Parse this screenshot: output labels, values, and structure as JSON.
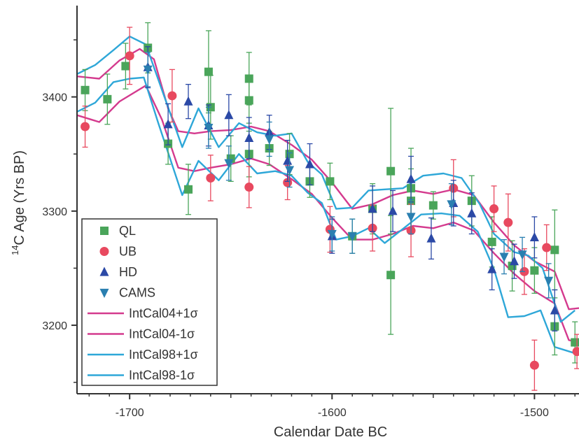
{
  "chart_data": {
    "type": "scatter",
    "xlabel": "Calendar Date BC",
    "ylabel_prefix": "14",
    "ylabel": "C Age (Yrs BP)",
    "xlim": [
      -1726,
      -1478
    ],
    "ylim": [
      3140,
      3480
    ],
    "x_ticks": [
      -1700,
      -1600,
      -1500
    ],
    "x_tick_labels": [
      "-1700",
      "-1600",
      "-1500"
    ],
    "y_ticks": [
      3200,
      3300,
      3400
    ],
    "y_tick_labels": [
      "3200",
      "3300",
      "3400"
    ],
    "grid": false,
    "legend_position": "bottom-left",
    "colors": {
      "QL": "#4aa55a",
      "UB": "#e8495f",
      "HD": "#2b49a6",
      "CAMS": "#2a7fb0",
      "IntCal04": "#d43a8e",
      "IntCal98": "#2ea7d8"
    },
    "scatter_series": [
      {
        "name": "QL",
        "marker": "square",
        "color": "#4aa55a",
        "points": [
          {
            "x": -1722,
            "y": 3406,
            "err": 18
          },
          {
            "x": -1711,
            "y": 3398,
            "err": 22
          },
          {
            "x": -1702,
            "y": 3427,
            "err": 20
          },
          {
            "x": -1691,
            "y": 3443,
            "err": 22
          },
          {
            "x": -1681,
            "y": 3359,
            "err": 18
          },
          {
            "x": -1671,
            "y": 3319,
            "err": 22
          },
          {
            "x": -1661,
            "y": 3422,
            "err": 36
          },
          {
            "x": -1660,
            "y": 3391,
            "err": 28
          },
          {
            "x": -1641,
            "y": 3416,
            "err": 23
          },
          {
            "x": -1641,
            "y": 3397,
            "err": 20
          },
          {
            "x": -1641,
            "y": 3350,
            "err": 20
          },
          {
            "x": -1650,
            "y": 3346,
            "err": 20
          },
          {
            "x": -1631,
            "y": 3355,
            "err": 15
          },
          {
            "x": -1621,
            "y": 3350,
            "err": 18
          },
          {
            "x": -1611,
            "y": 3326,
            "err": 14
          },
          {
            "x": -1601,
            "y": 3326,
            "err": 16
          },
          {
            "x": -1590,
            "y": 3278,
            "err": 15
          },
          {
            "x": -1580,
            "y": 3302,
            "err": 22
          },
          {
            "x": -1571,
            "y": 3335,
            "err": 55
          },
          {
            "x": -1571,
            "y": 3244,
            "err": 52
          },
          {
            "x": -1561,
            "y": 3309,
            "err": 28
          },
          {
            "x": -1561,
            "y": 3320,
            "err": 35
          },
          {
            "x": -1550,
            "y": 3305,
            "err": 12
          },
          {
            "x": -1531,
            "y": 3309,
            "err": 22
          },
          {
            "x": -1521,
            "y": 3273,
            "err": 22
          },
          {
            "x": -1511,
            "y": 3252,
            "err": 22
          },
          {
            "x": -1500,
            "y": 3248,
            "err": 20
          },
          {
            "x": -1490,
            "y": 3266,
            "err": 35
          },
          {
            "x": -1490,
            "y": 3199,
            "err": 25
          },
          {
            "x": -1480,
            "y": 3185,
            "err": 18
          }
        ]
      },
      {
        "name": "UB",
        "marker": "circle",
        "color": "#e8495f",
        "points": [
          {
            "x": -1722,
            "y": 3374,
            "err": 18
          },
          {
            "x": -1700,
            "y": 3436,
            "err": 25
          },
          {
            "x": -1679,
            "y": 3401,
            "err": 23
          },
          {
            "x": -1660,
            "y": 3329,
            "err": 20
          },
          {
            "x": -1641,
            "y": 3321,
            "err": 18
          },
          {
            "x": -1622,
            "y": 3325,
            "err": 15
          },
          {
            "x": -1601,
            "y": 3284,
            "err": 20
          },
          {
            "x": -1580,
            "y": 3285,
            "err": 20
          },
          {
            "x": -1561,
            "y": 3283,
            "err": 23
          },
          {
            "x": -1540,
            "y": 3320,
            "err": 25
          },
          {
            "x": -1520,
            "y": 3302,
            "err": 20
          },
          {
            "x": -1513,
            "y": 3290,
            "err": 25
          },
          {
            "x": -1505,
            "y": 3247,
            "err": 20
          },
          {
            "x": -1500,
            "y": 3165,
            "err": 22
          },
          {
            "x": -1494,
            "y": 3268,
            "err": 20
          },
          {
            "x": -1479,
            "y": 3177,
            "err": 15
          }
        ]
      },
      {
        "name": "HD",
        "marker": "triangle-up",
        "color": "#2b49a6",
        "points": [
          {
            "x": -1691,
            "y": 3426,
            "err": 18
          },
          {
            "x": -1681,
            "y": 3376,
            "err": 18
          },
          {
            "x": -1671,
            "y": 3396,
            "err": 15
          },
          {
            "x": -1661,
            "y": 3375,
            "err": 18
          },
          {
            "x": -1651,
            "y": 3384,
            "err": 18
          },
          {
            "x": -1641,
            "y": 3364,
            "err": 18
          },
          {
            "x": -1631,
            "y": 3369,
            "err": 15
          },
          {
            "x": -1622,
            "y": 3344,
            "err": 18
          },
          {
            "x": -1611,
            "y": 3341,
            "err": 18
          },
          {
            "x": -1600,
            "y": 3278,
            "err": 15
          },
          {
            "x": -1580,
            "y": 3302,
            "err": 20
          },
          {
            "x": -1570,
            "y": 3300,
            "err": 18
          },
          {
            "x": -1561,
            "y": 3328,
            "err": 20
          },
          {
            "x": -1551,
            "y": 3276,
            "err": 18
          },
          {
            "x": -1540,
            "y": 3307,
            "err": 20
          },
          {
            "x": -1531,
            "y": 3298,
            "err": 18
          },
          {
            "x": -1521,
            "y": 3249,
            "err": 18
          },
          {
            "x": -1510,
            "y": 3256,
            "err": 15
          },
          {
            "x": -1500,
            "y": 3277,
            "err": 18
          },
          {
            "x": -1490,
            "y": 3213,
            "err": 18
          }
        ]
      },
      {
        "name": "CAMS",
        "marker": "triangle-down",
        "color": "#2a7fb0",
        "points": [
          {
            "x": -1691,
            "y": 3424,
            "err": 15
          },
          {
            "x": -1661,
            "y": 3373,
            "err": 18
          },
          {
            "x": -1651,
            "y": 3342,
            "err": 15
          },
          {
            "x": -1631,
            "y": 3363,
            "err": 15
          },
          {
            "x": -1621,
            "y": 3336,
            "err": 15
          },
          {
            "x": -1600,
            "y": 3280,
            "err": 15
          },
          {
            "x": -1590,
            "y": 3278,
            "err": 15
          },
          {
            "x": -1561,
            "y": 3295,
            "err": 15
          },
          {
            "x": -1541,
            "y": 3306,
            "err": 18
          },
          {
            "x": -1515,
            "y": 3260,
            "err": 15
          },
          {
            "x": -1506,
            "y": 3262,
            "err": 15
          },
          {
            "x": -1493,
            "y": 3239,
            "err": 15
          }
        ]
      }
    ],
    "line_series": [
      {
        "name": "IntCal04+1σ",
        "color": "#d43a8e",
        "points": [
          [
            -1726,
            3418
          ],
          [
            -1715,
            3416
          ],
          [
            -1705,
            3432
          ],
          [
            -1695,
            3442
          ],
          [
            -1688,
            3433
          ],
          [
            -1681,
            3390
          ],
          [
            -1676,
            3370
          ],
          [
            -1668,
            3368
          ],
          [
            -1660,
            3370
          ],
          [
            -1650,
            3371
          ],
          [
            -1640,
            3374
          ],
          [
            -1631,
            3370
          ],
          [
            -1620,
            3358
          ],
          [
            -1610,
            3345
          ],
          [
            -1600,
            3325
          ],
          [
            -1590,
            3302
          ],
          [
            -1580,
            3306
          ],
          [
            -1570,
            3314
          ],
          [
            -1560,
            3318
          ],
          [
            -1550,
            3315
          ],
          [
            -1540,
            3319
          ],
          [
            -1530,
            3314
          ],
          [
            -1520,
            3290
          ],
          [
            -1510,
            3270
          ],
          [
            -1500,
            3256
          ],
          [
            -1490,
            3247
          ],
          [
            -1483,
            3214
          ],
          [
            -1478,
            3215
          ]
        ]
      },
      {
        "name": "IntCal04-1σ",
        "color": "#d43a8e",
        "points": [
          [
            -1726,
            3384
          ],
          [
            -1715,
            3378
          ],
          [
            -1705,
            3396
          ],
          [
            -1692,
            3410
          ],
          [
            -1684,
            3380
          ],
          [
            -1676,
            3338
          ],
          [
            -1668,
            3335
          ],
          [
            -1660,
            3338
          ],
          [
            -1650,
            3341
          ],
          [
            -1640,
            3346
          ],
          [
            -1631,
            3341
          ],
          [
            -1620,
            3328
          ],
          [
            -1610,
            3315
          ],
          [
            -1600,
            3294
          ],
          [
            -1590,
            3275
          ],
          [
            -1580,
            3275
          ],
          [
            -1570,
            3280
          ],
          [
            -1560,
            3287
          ],
          [
            -1550,
            3285
          ],
          [
            -1540,
            3290
          ],
          [
            -1530,
            3283
          ],
          [
            -1520,
            3263
          ],
          [
            -1510,
            3245
          ],
          [
            -1500,
            3230
          ],
          [
            -1490,
            3219
          ],
          [
            -1483,
            3187
          ],
          [
            -1478,
            3185
          ]
        ]
      },
      {
        "name": "IntCal98+1σ",
        "color": "#2ea7d8",
        "points": [
          [
            -1726,
            3420
          ],
          [
            -1717,
            3428
          ],
          [
            -1708,
            3441
          ],
          [
            -1700,
            3453
          ],
          [
            -1692,
            3446
          ],
          [
            -1684,
            3406
          ],
          [
            -1674,
            3356
          ],
          [
            -1666,
            3390
          ],
          [
            -1656,
            3356
          ],
          [
            -1646,
            3377
          ],
          [
            -1637,
            3369
          ],
          [
            -1628,
            3366
          ],
          [
            -1620,
            3368
          ],
          [
            -1612,
            3343
          ],
          [
            -1605,
            3332
          ],
          [
            -1598,
            3302
          ],
          [
            -1590,
            3303
          ],
          [
            -1582,
            3318
          ],
          [
            -1574,
            3319
          ],
          [
            -1565,
            3320
          ],
          [
            -1555,
            3331
          ],
          [
            -1545,
            3333
          ],
          [
            -1536,
            3329
          ],
          [
            -1527,
            3306
          ],
          [
            -1520,
            3280
          ],
          [
            -1510,
            3264
          ],
          [
            -1503,
            3261
          ],
          [
            -1496,
            3250
          ],
          [
            -1487,
            3203
          ],
          [
            -1480,
            3213
          ]
        ]
      },
      {
        "name": "IntCal98-1σ",
        "color": "#2ea7d8",
        "points": [
          [
            -1726,
            3387
          ],
          [
            -1717,
            3395
          ],
          [
            -1708,
            3413
          ],
          [
            -1700,
            3416
          ],
          [
            -1693,
            3417
          ],
          [
            -1686,
            3378
          ],
          [
            -1674,
            3314
          ],
          [
            -1666,
            3344
          ],
          [
            -1656,
            3327
          ],
          [
            -1646,
            3350
          ],
          [
            -1637,
            3333
          ],
          [
            -1628,
            3335
          ],
          [
            -1620,
            3331
          ],
          [
            -1612,
            3316
          ],
          [
            -1605,
            3307
          ],
          [
            -1598,
            3275
          ],
          [
            -1590,
            3278
          ],
          [
            -1582,
            3285
          ],
          [
            -1574,
            3272
          ],
          [
            -1566,
            3283
          ],
          [
            -1556,
            3297
          ],
          [
            -1546,
            3298
          ],
          [
            -1537,
            3296
          ],
          [
            -1528,
            3282
          ],
          [
            -1520,
            3249
          ],
          [
            -1513,
            3207
          ],
          [
            -1505,
            3208
          ],
          [
            -1497,
            3213
          ],
          [
            -1490,
            3181
          ],
          [
            -1481,
            3176
          ],
          [
            -1478,
            3180
          ]
        ]
      }
    ]
  }
}
